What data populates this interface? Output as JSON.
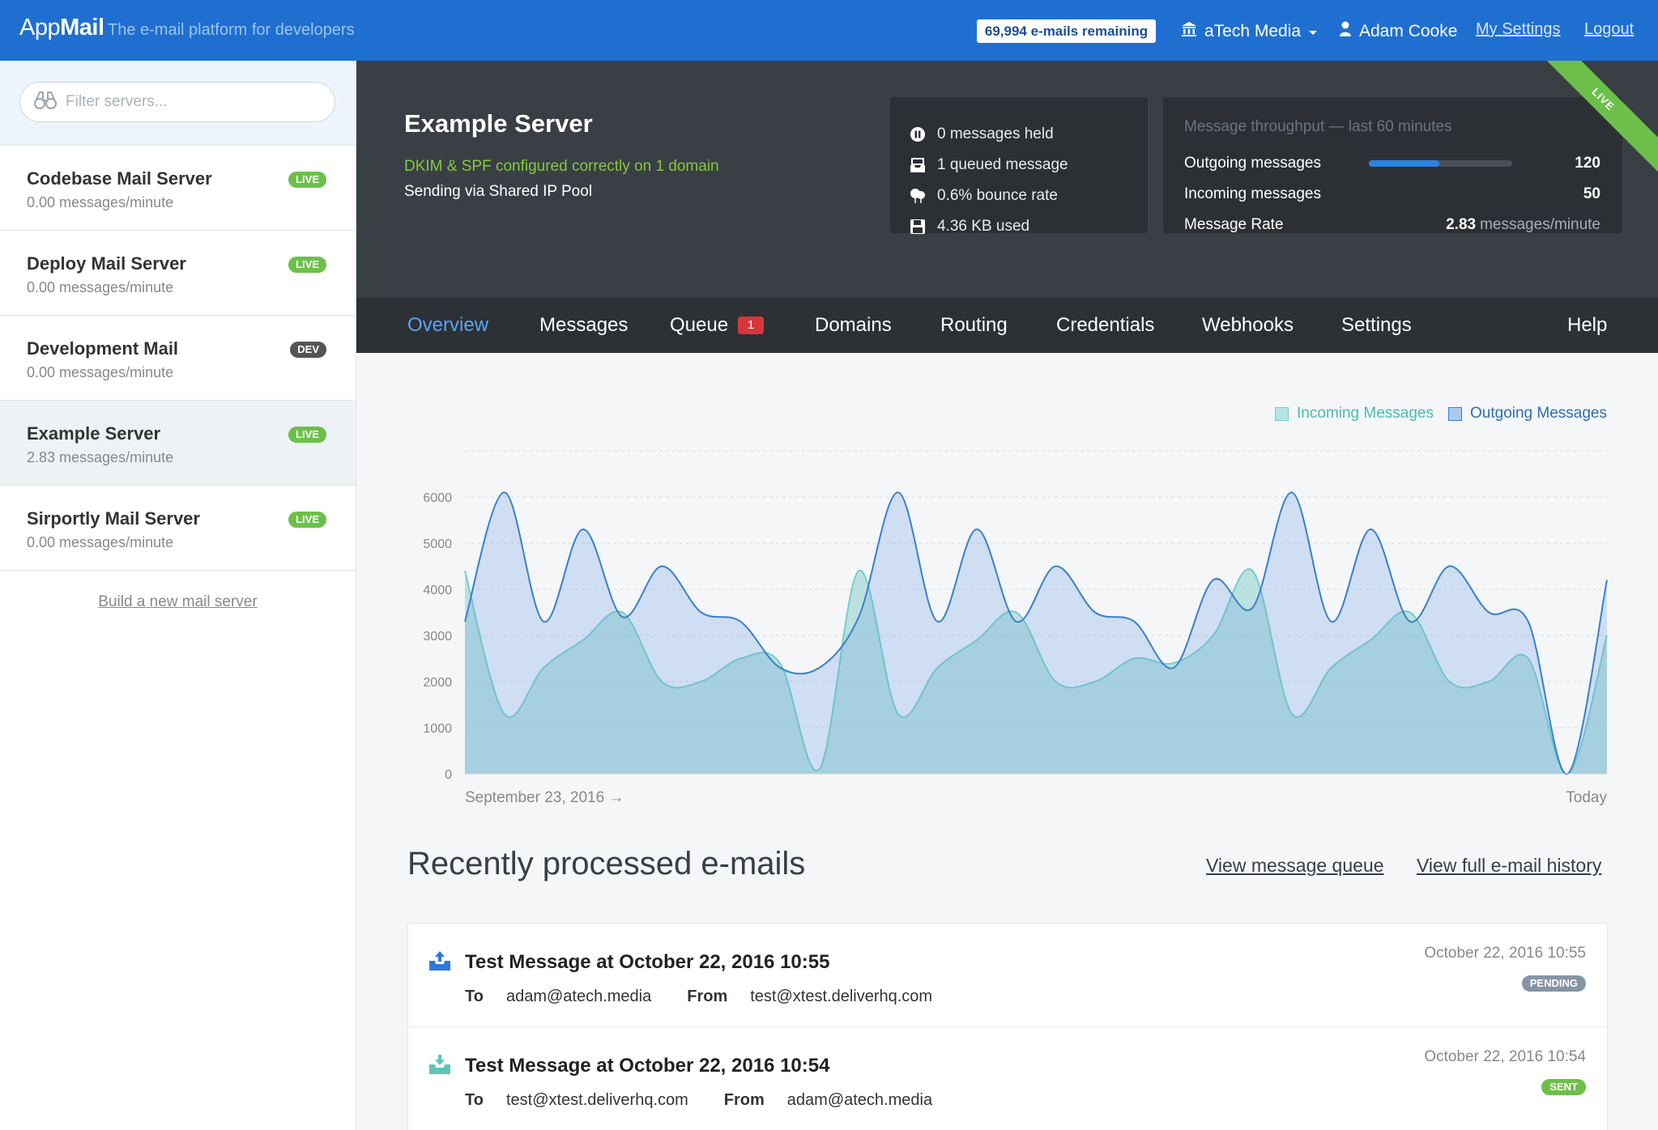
{
  "header": {
    "brand_light": "App",
    "brand_bold": "Mail",
    "tagline": "The e-mail platform for developers",
    "quota": "69,994 e-mails remaining",
    "organization": "aTech Media",
    "user": "Adam Cooke",
    "settings_link": "My Settings",
    "logout_link": "Logout"
  },
  "sidebar": {
    "filter_placeholder": "Filter servers...",
    "servers": [
      {
        "name": "Codebase Mail Server",
        "rate": "0.00 messages/minute",
        "badge": "LIVE"
      },
      {
        "name": "Deploy Mail Server",
        "rate": "0.00 messages/minute",
        "badge": "LIVE"
      },
      {
        "name": "Development Mail",
        "rate": "0.00 messages/minute",
        "badge": "DEV"
      },
      {
        "name": "Example Server",
        "rate": "2.83 messages/minute",
        "badge": "LIVE"
      },
      {
        "name": "Sirportly Mail Server",
        "rate": "0.00 messages/minute",
        "badge": "LIVE"
      }
    ],
    "new_server_link": "Build a new mail server"
  },
  "server": {
    "title": "Example Server",
    "dkim_status": "DKIM & SPF configured correctly on 1 domain",
    "sending_pool": "Sending via Shared IP Pool",
    "ribbon": "LIVE",
    "stats": [
      {
        "icon": "pause-icon",
        "text": "0 messages held"
      },
      {
        "icon": "inbox-tray-icon",
        "text": "1 queued message"
      },
      {
        "icon": "balloon-icon",
        "text": "0.6% bounce rate"
      },
      {
        "icon": "floppy-disk-icon",
        "text": "4.36 KB used"
      }
    ],
    "throughput": {
      "title": "Message throughput — last 60 minutes",
      "outgoing_label": "Outgoing messages",
      "outgoing_value": "120",
      "outgoing_fill": 0.49,
      "incoming_label": "Incoming messages",
      "incoming_value": "50",
      "rate_label": "Message Rate",
      "rate_value": "2.83",
      "rate_unit": "messages/minute"
    }
  },
  "tabs": [
    {
      "label": "Overview",
      "active": true
    },
    {
      "label": "Messages"
    },
    {
      "label": "Queue",
      "count": "1"
    },
    {
      "label": "Domains"
    },
    {
      "label": "Routing"
    },
    {
      "label": "Credentials"
    },
    {
      "label": "Webhooks"
    },
    {
      "label": "Settings"
    },
    {
      "label": "Help"
    }
  ],
  "chart_data": {
    "type": "area",
    "x_start_label": "September 23, 2016 →",
    "x_end_label": "Today",
    "ylim": [
      0,
      7000
    ],
    "yticks": [
      0,
      1000,
      2000,
      3000,
      4000,
      5000,
      6000
    ],
    "grid": true,
    "legend_placement": "top-right",
    "series": [
      {
        "name": "Incoming Messages",
        "color": "#74cfc6",
        "values": [
          4400,
          1300,
          2300,
          2900,
          3500,
          2000,
          2000,
          2500,
          2400,
          100,
          4400,
          1300,
          2300,
          2900,
          3500,
          2000,
          2000,
          2500,
          2400,
          3000,
          4400,
          1300,
          2300,
          2900,
          3500,
          2000,
          2000,
          2500,
          0,
          3000
        ]
      },
      {
        "name": "Outgoing Messages",
        "color": "#3a80c9",
        "values": [
          3300,
          6100,
          3300,
          5300,
          3400,
          4500,
          3500,
          3300,
          2300,
          2300,
          3400,
          6100,
          3300,
          5300,
          3300,
          4500,
          3500,
          3300,
          2300,
          4200,
          3600,
          6100,
          3300,
          5300,
          3300,
          4500,
          3500,
          3300,
          0,
          4200
        ]
      }
    ]
  },
  "recent": {
    "title": "Recently processed e-mails",
    "queue_link": "View message queue",
    "history_link": "View full e-mail history",
    "to_label": "To",
    "from_label": "From",
    "emails": [
      {
        "subject": "Test Message at October 22, 2016 10:55",
        "to": "adam@atech.media",
        "from": "test@xtest.deliverhq.com",
        "date": "October 22, 2016 10:55",
        "status": "PENDING"
      },
      {
        "subject": "Test Message at October 22, 2016 10:54",
        "to": "test@xtest.deliverhq.com",
        "from": "adam@atech.media",
        "date": "October 22, 2016 10:54",
        "status": "SENT"
      }
    ]
  }
}
